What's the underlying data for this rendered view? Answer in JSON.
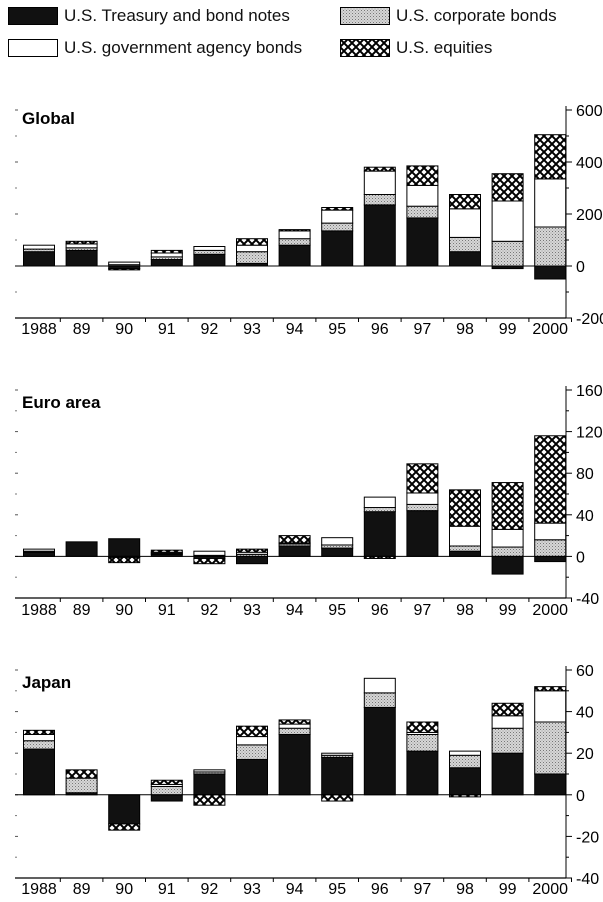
{
  "legend": [
    {
      "label": "U.S. Treasury and bond notes",
      "pattern": "black"
    },
    {
      "label": "U.S. corporate bonds",
      "pattern": "dots"
    },
    {
      "label": "U.S. government agency bonds",
      "pattern": "white"
    },
    {
      "label": "U.S. equities",
      "pattern": "cross"
    }
  ],
  "colors": {
    "treasury": "#111111",
    "corporate": "#bdbdbd",
    "agency": "#ffffff",
    "equities": "cross-hatch"
  },
  "chart_data": [
    {
      "type": "bar",
      "stacked": true,
      "title": "Global",
      "categories": [
        "1988",
        "89",
        "90",
        "91",
        "92",
        "93",
        "94",
        "95",
        "96",
        "97",
        "98",
        "99",
        "2000"
      ],
      "ylim": [
        -200,
        600
      ],
      "yticks": [
        600,
        400,
        200,
        0,
        -200
      ],
      "series": [
        {
          "name": "U.S. Treasury and bond notes",
          "values": [
            55,
            60,
            -10,
            25,
            45,
            10,
            80,
            135,
            235,
            185,
            55,
            -10,
            -50
          ]
        },
        {
          "name": "U.S. corporate bonds",
          "values": [
            10,
            10,
            5,
            10,
            15,
            45,
            25,
            30,
            40,
            45,
            55,
            95,
            150
          ]
        },
        {
          "name": "U.S. government agency bonds",
          "values": [
            15,
            15,
            10,
            15,
            15,
            25,
            30,
            50,
            90,
            80,
            110,
            155,
            185
          ]
        },
        {
          "name": "U.S. equities",
          "values": [
            0,
            10,
            -5,
            10,
            0,
            25,
            5,
            10,
            15,
            75,
            55,
            105,
            170
          ]
        }
      ]
    },
    {
      "type": "bar",
      "stacked": true,
      "title": "Euro area",
      "categories": [
        "1988",
        "89",
        "90",
        "91",
        "92",
        "93",
        "94",
        "95",
        "96",
        "97",
        "98",
        "99",
        "2000"
      ],
      "ylim": [
        -40,
        160
      ],
      "yticks": [
        160,
        120,
        80,
        40,
        0,
        -40
      ],
      "series": [
        {
          "name": "U.S. Treasury and bond notes",
          "values": [
            4,
            14,
            17,
            2,
            -2,
            -7,
            10,
            8,
            43,
            44,
            5,
            -17,
            -5
          ]
        },
        {
          "name": "U.S. corporate bonds",
          "values": [
            1,
            0,
            -1,
            1,
            1,
            2,
            2,
            3,
            4,
            6,
            5,
            9,
            16
          ]
        },
        {
          "name": "U.S. government agency bonds",
          "values": [
            2,
            0,
            0,
            1,
            4,
            2,
            1,
            7,
            10,
            11,
            19,
            17,
            16
          ]
        },
        {
          "name": "U.S. equities",
          "values": [
            0,
            0,
            -5,
            2,
            -5,
            3,
            7,
            0,
            -2,
            28,
            35,
            45,
            84
          ]
        }
      ]
    },
    {
      "type": "bar",
      "stacked": true,
      "title": "Japan",
      "categories": [
        "1988",
        "89",
        "90",
        "91",
        "92",
        "93",
        "94",
        "95",
        "96",
        "97",
        "98",
        "99",
        "2000"
      ],
      "ylim": [
        -40,
        60
      ],
      "yticks": [
        60,
        40,
        20,
        0,
        -20,
        -40
      ],
      "series": [
        {
          "name": "U.S. Treasury and bond notes",
          "values": [
            22,
            1,
            -14,
            -3,
            10,
            17,
            29,
            18,
            42,
            21,
            13,
            20,
            10
          ]
        },
        {
          "name": "U.S. corporate bonds",
          "values": [
            4,
            7,
            0,
            4,
            1,
            7,
            3,
            1,
            7,
            8,
            6,
            12,
            25
          ]
        },
        {
          "name": "U.S. government agency bonds",
          "values": [
            3,
            0,
            0,
            1,
            1,
            4,
            2,
            1,
            7,
            1,
            2,
            6,
            15
          ]
        },
        {
          "name": "U.S. equities",
          "values": [
            2,
            4,
            -3,
            2,
            -5,
            5,
            2,
            -3,
            0,
            5,
            -1,
            6,
            2
          ]
        }
      ]
    }
  ]
}
